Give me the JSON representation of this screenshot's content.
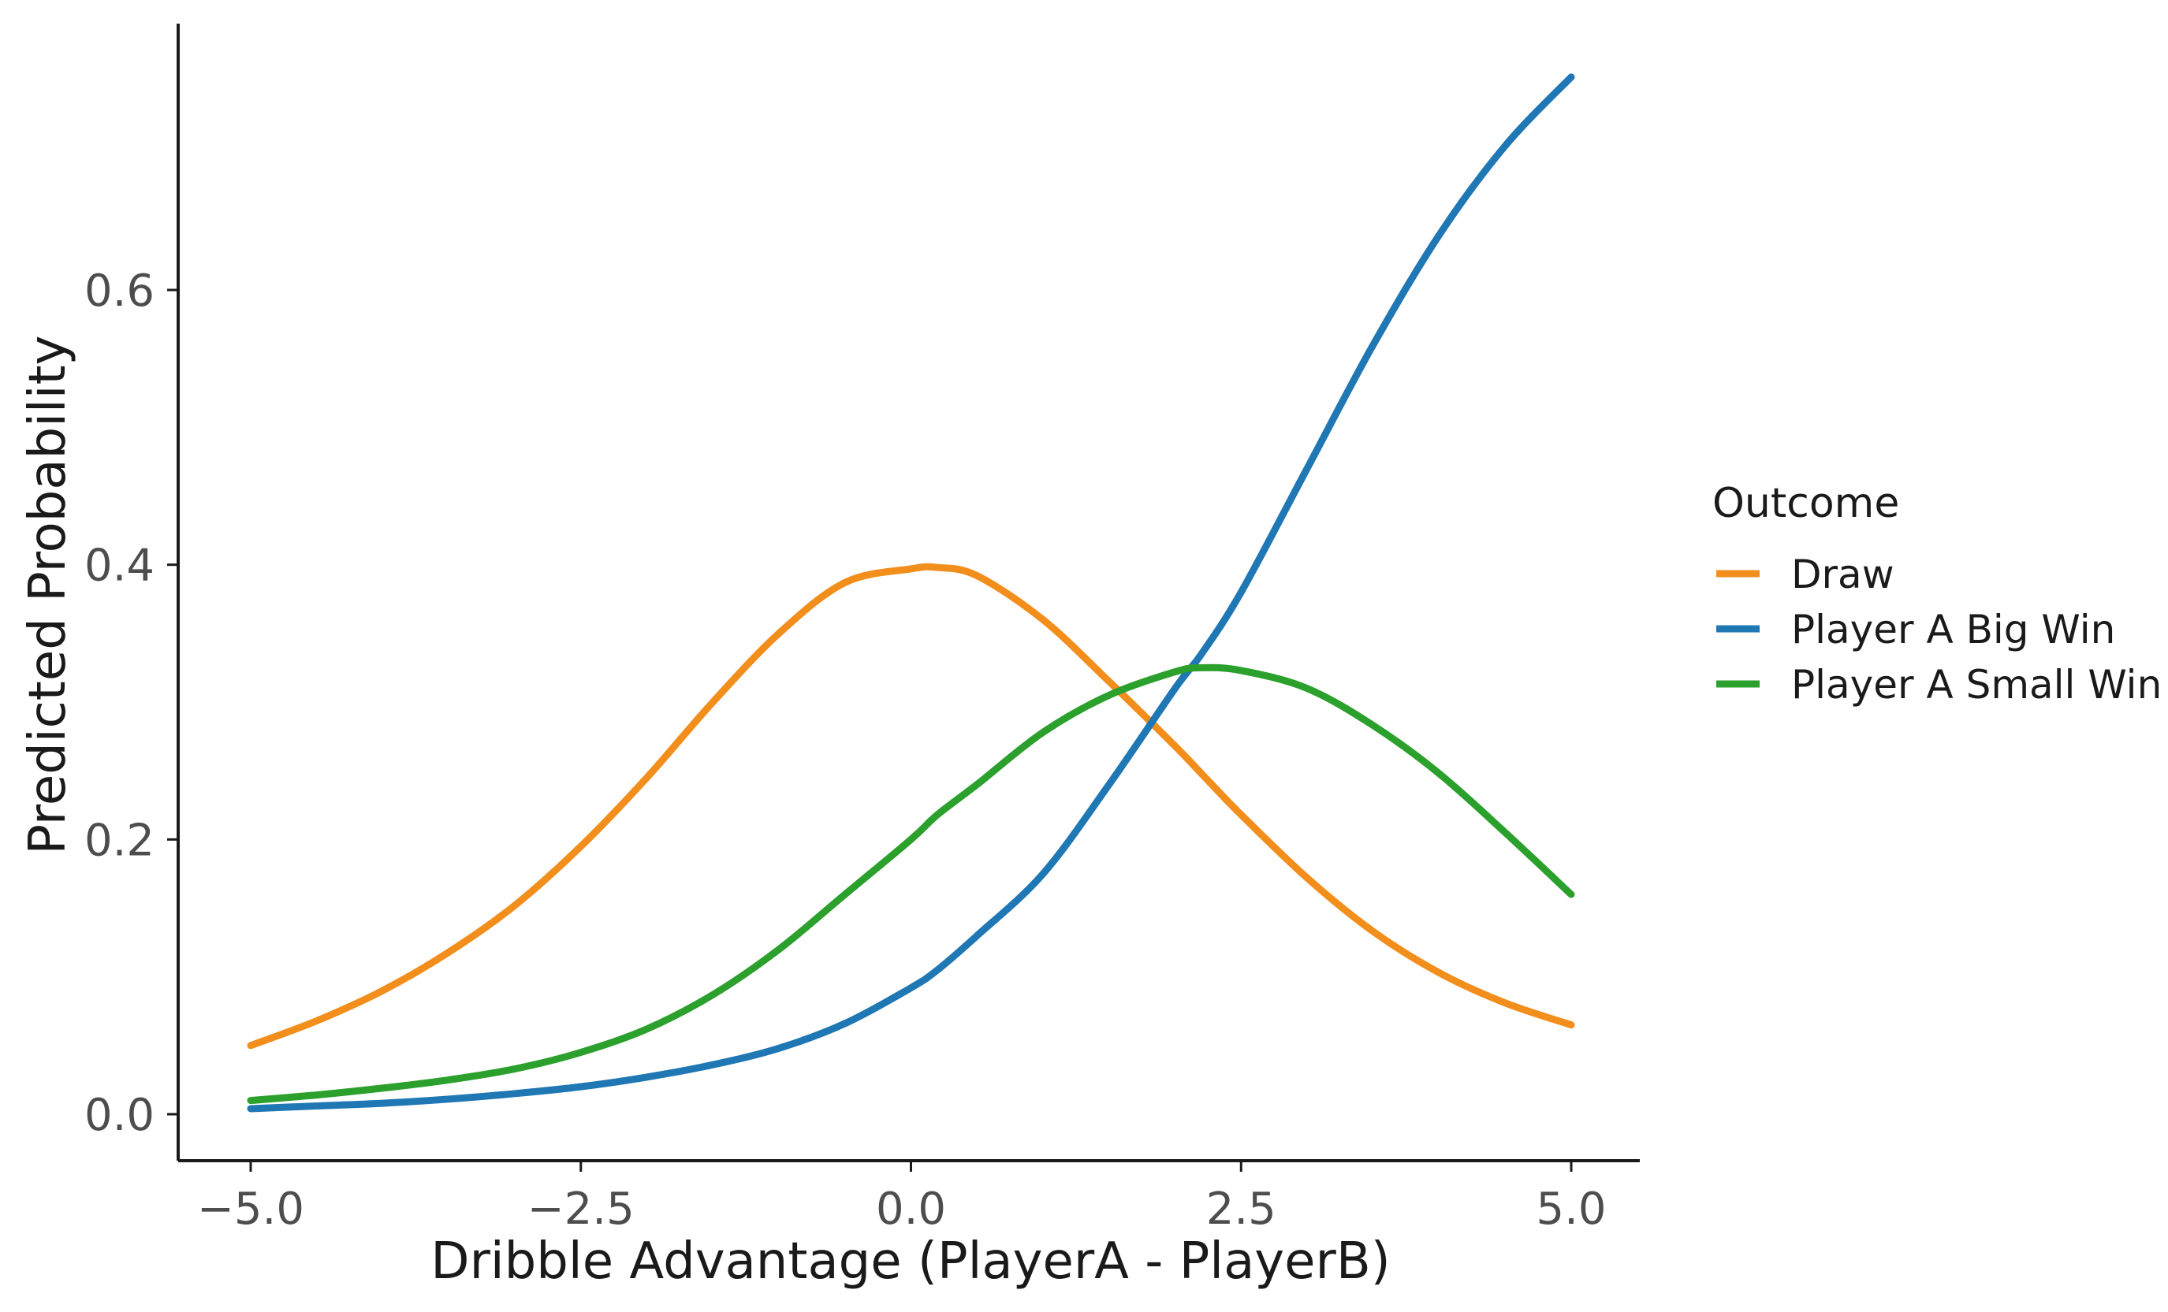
{
  "chart_data": {
    "type": "line",
    "xlabel": "Dribble Advantage (PlayerA - PlayerB)",
    "ylabel": "Predicted Probability",
    "xlim": [
      -5.0,
      5.0
    ],
    "ylim": [
      0.0,
      0.775
    ],
    "x_ticks": [
      -5.0,
      -2.5,
      0.0,
      2.5,
      5.0
    ],
    "x_tick_labels": [
      "−5.0",
      "−2.5",
      "0.0",
      "2.5",
      "5.0"
    ],
    "y_ticks": [
      0.0,
      0.2,
      0.4,
      0.6
    ],
    "y_tick_labels": [
      "0.0",
      "0.2",
      "0.4",
      "0.6"
    ],
    "grid": false,
    "legend": {
      "title": "Outcome",
      "placement": "right"
    },
    "x": [
      -5.0,
      -4.5,
      -4.0,
      -3.5,
      -3.0,
      -2.5,
      -2.0,
      -1.5,
      -1.0,
      -0.5,
      0.0,
      0.2,
      0.5,
      1.0,
      1.5,
      2.0,
      2.2,
      2.5,
      3.0,
      3.5,
      4.0,
      4.5,
      5.0
    ],
    "series": [
      {
        "name": "Draw",
        "color": "#f28e1c",
        "values": [
          0.05,
          0.068,
          0.09,
          0.118,
          0.152,
          0.195,
          0.245,
          0.3,
          0.35,
          0.387,
          0.397,
          0.398,
          0.392,
          0.36,
          0.315,
          0.268,
          0.248,
          0.218,
          0.172,
          0.133,
          0.103,
          0.081,
          0.065
        ]
      },
      {
        "name": "Player A Big Win",
        "color": "#1f77b4",
        "values": [
          0.004,
          0.006,
          0.008,
          0.011,
          0.015,
          0.02,
          0.027,
          0.036,
          0.048,
          0.066,
          0.092,
          0.105,
          0.13,
          0.175,
          0.24,
          0.31,
          0.335,
          0.38,
          0.47,
          0.56,
          0.64,
          0.705,
          0.755
        ]
      },
      {
        "name": "Player A Small Win",
        "color": "#2ca02c",
        "values": [
          0.01,
          0.014,
          0.019,
          0.025,
          0.033,
          0.045,
          0.062,
          0.087,
          0.12,
          0.16,
          0.2,
          0.218,
          0.24,
          0.278,
          0.305,
          0.322,
          0.325,
          0.323,
          0.31,
          0.283,
          0.248,
          0.205,
          0.16
        ]
      }
    ]
  }
}
